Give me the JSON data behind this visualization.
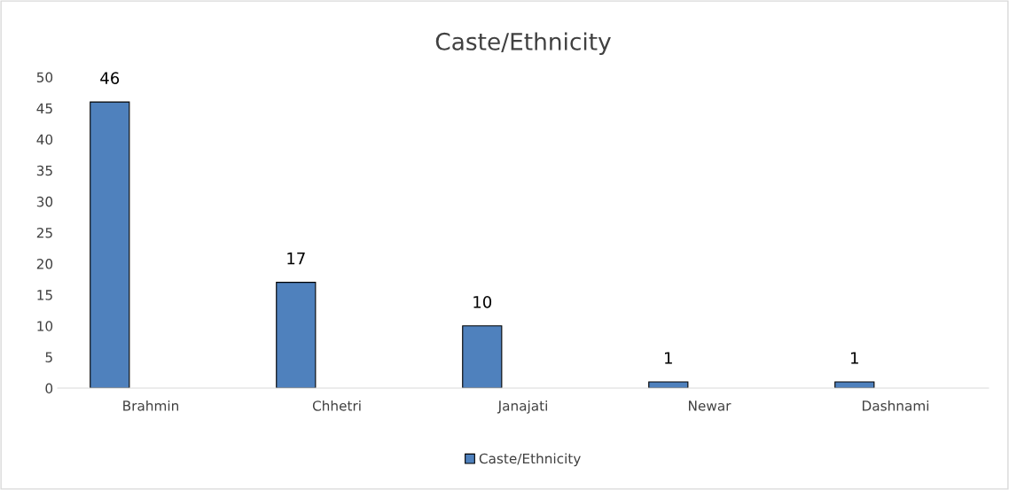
{
  "chart_data": {
    "type": "bar",
    "title": "Caste/Ethnicity",
    "categories": [
      "Brahmin",
      "Chhetri",
      "Janajati",
      "Newar",
      "Dashnami"
    ],
    "series": [
      {
        "name": "Caste/Ethnicity",
        "color": "#4f81bd",
        "values": [
          46,
          17,
          10,
          1,
          1
        ]
      }
    ],
    "ylim": [
      0,
      50
    ],
    "yticks": [
      0,
      5,
      10,
      15,
      20,
      25,
      30,
      35,
      40,
      45,
      50
    ],
    "data_labels": true,
    "grid": false,
    "legend": "bottom"
  }
}
